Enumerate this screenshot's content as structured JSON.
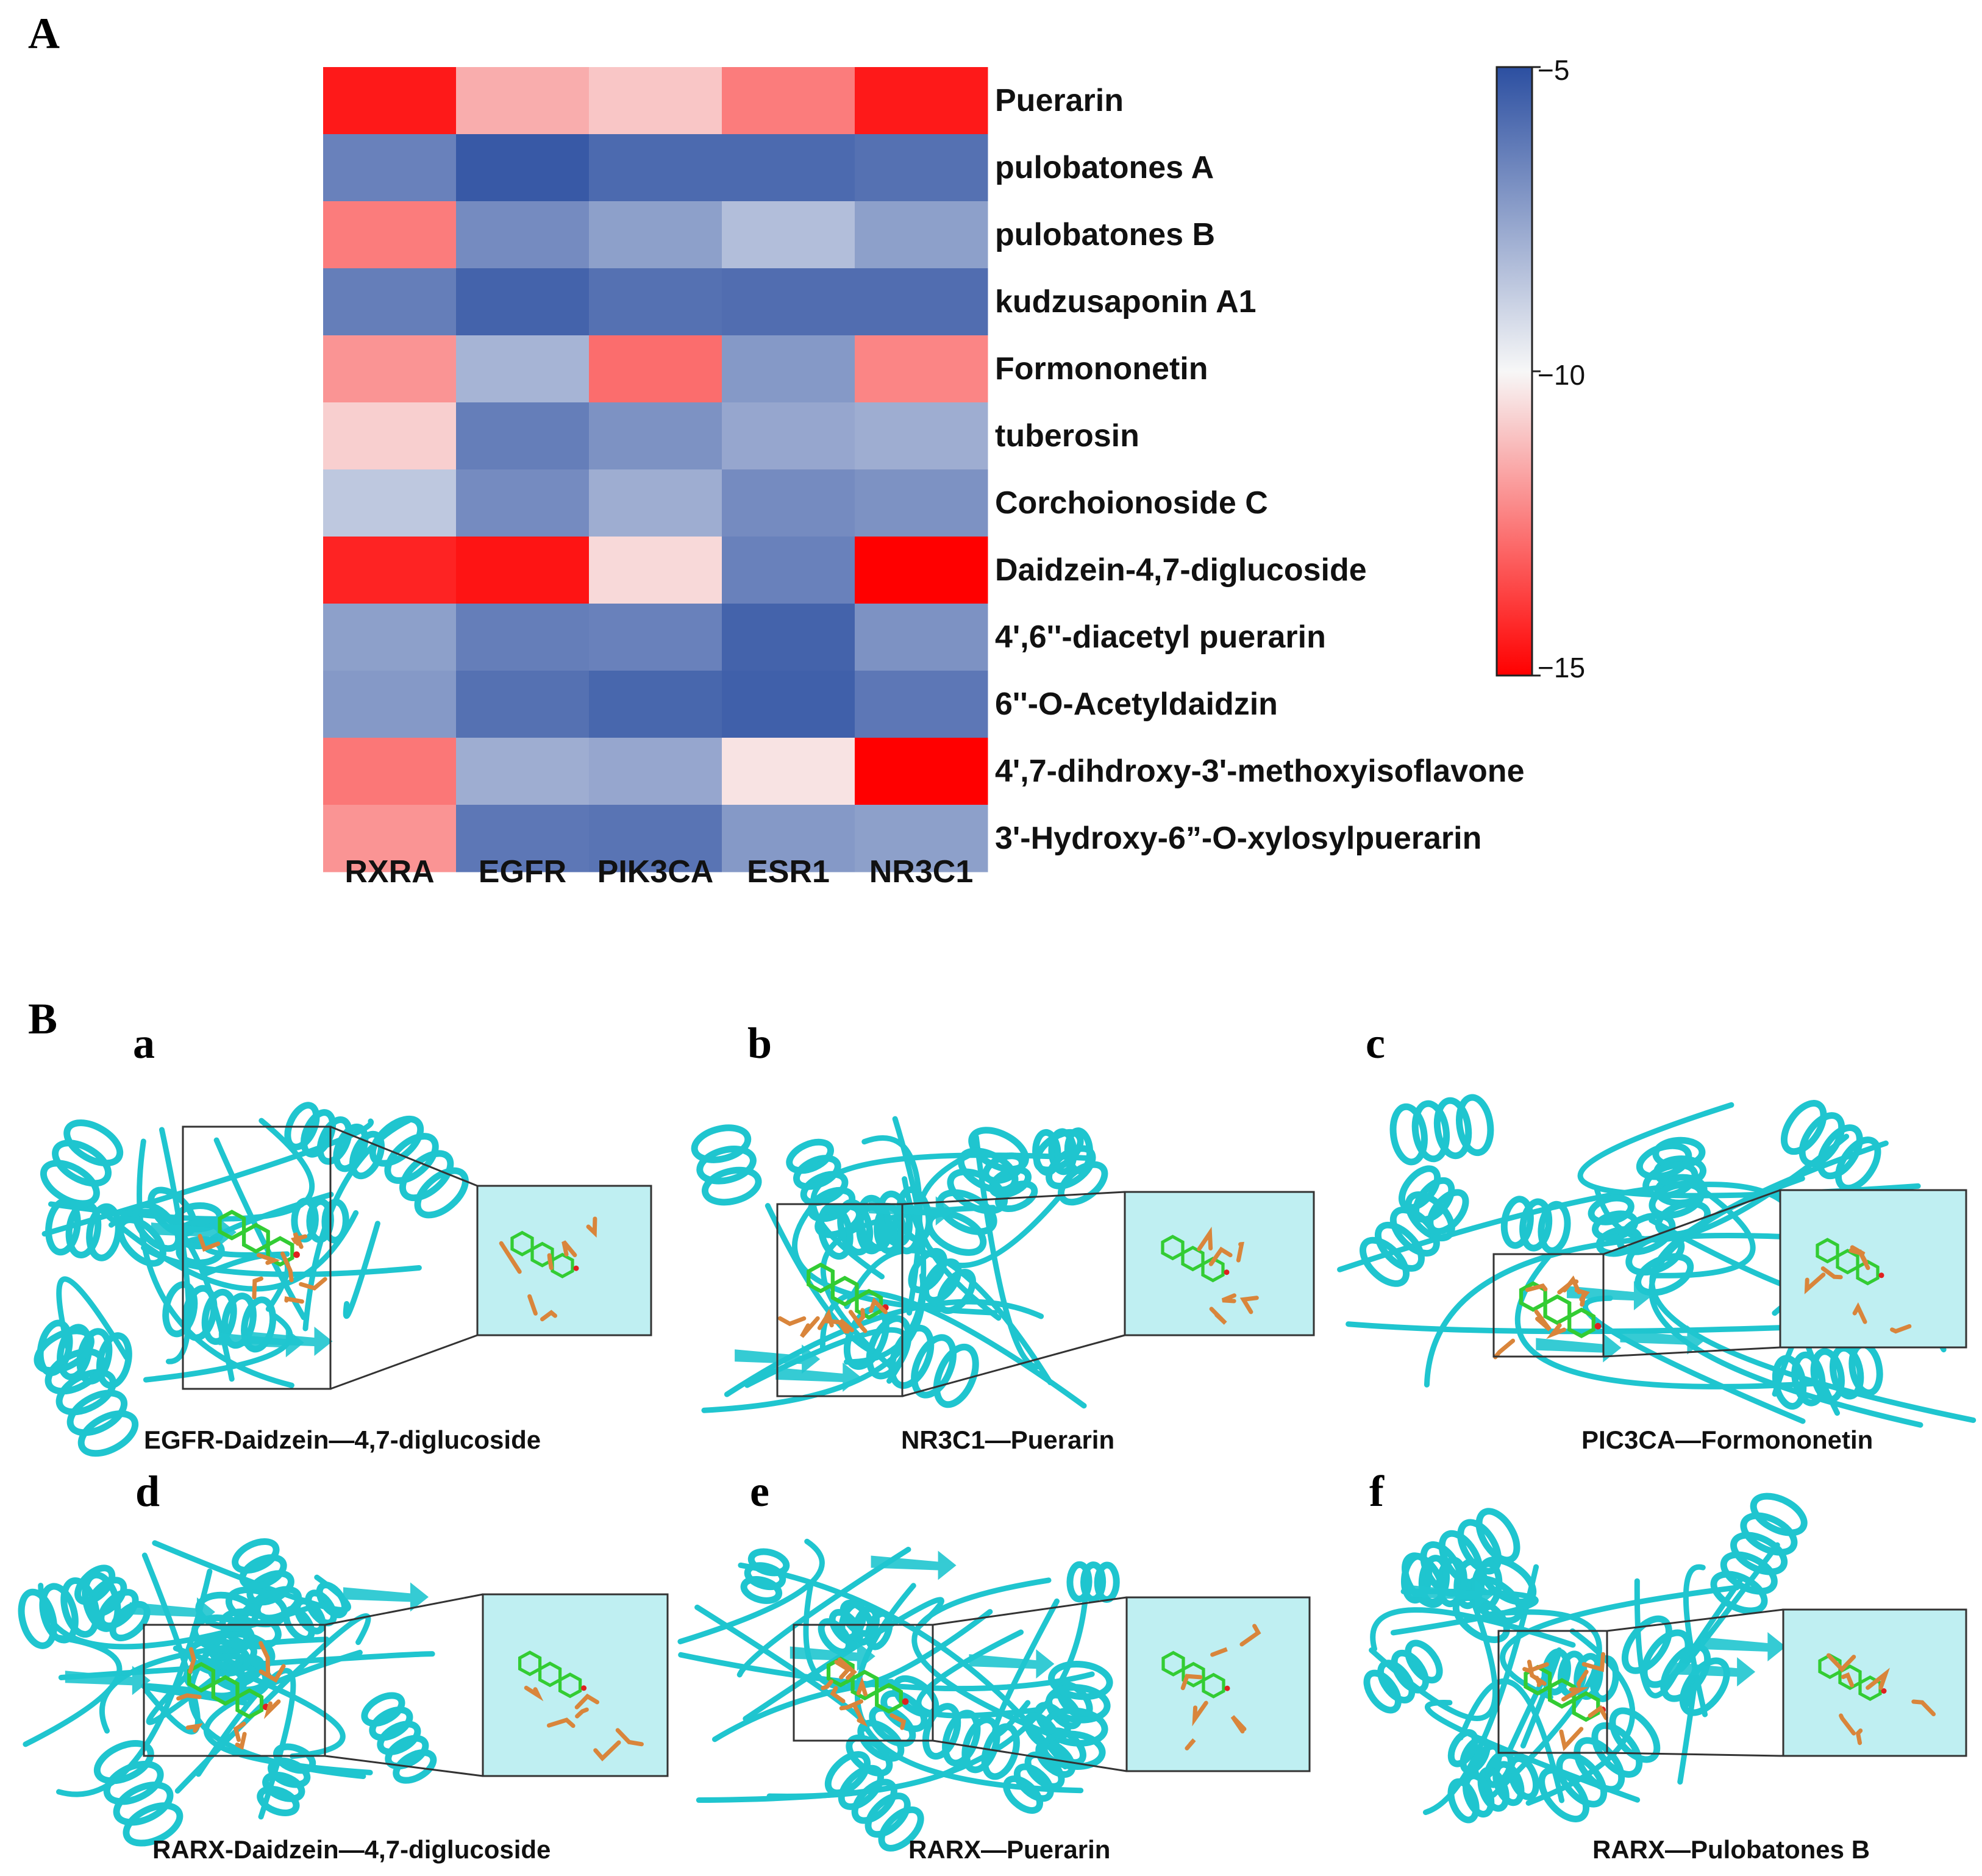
{
  "figure": {
    "panel_a_label": "A",
    "panel_b_label": "B"
  },
  "chart_data": {
    "type": "heatmap",
    "rows": [
      "Puerarin",
      "pulobatones A",
      "pulobatones B",
      "kudzusaponin A1",
      "Formononetin",
      "tuberosin",
      "Corchoionoside C",
      "Daidzein-4,7-diglucoside",
      "4',6''-diacetyl puerarin",
      "6''-O-Acetyldaidzin",
      "4',7-dihdroxy-3'-methoxyisoflavone",
      "3'-Hydroxy-6”-O-xylosylpuerarin"
    ],
    "columns": [
      "RXRA",
      "EGFR",
      "PIK3CA",
      "ESR1",
      "NR3C1"
    ],
    "values": [
      [
        -14.5,
        -11.5,
        -11.0,
        -12.5,
        -14.5
      ],
      [
        -6.5,
        -5.3,
        -5.8,
        -5.8,
        -6.0
      ],
      [
        -12.5,
        -6.8,
        -7.4,
        -8.3,
        -7.4
      ],
      [
        -6.4,
        -5.6,
        -6.0,
        -5.9,
        -5.9
      ],
      [
        -12.0,
        -8.0,
        -12.8,
        -7.2,
        -12.3
      ],
      [
        -10.8,
        -6.4,
        -7.0,
        -7.6,
        -7.8
      ],
      [
        -8.6,
        -6.8,
        -7.8,
        -6.8,
        -7.0
      ],
      [
        -14.3,
        -14.6,
        -10.6,
        -6.5,
        -15.0
      ],
      [
        -7.4,
        -6.4,
        -6.5,
        -5.6,
        -7.0
      ],
      [
        -7.2,
        -6.0,
        -5.7,
        -5.5,
        -6.2
      ],
      [
        -12.6,
        -7.8,
        -7.6,
        -10.4,
        -15.0
      ],
      [
        -12.0,
        -6.2,
        -6.1,
        -7.2,
        -7.4
      ]
    ],
    "colorbar": {
      "min": -15,
      "max": -5,
      "ticks": [
        "−5",
        "−10",
        "−15"
      ],
      "tick_values": [
        -5,
        -10,
        -15
      ]
    },
    "colors": {
      "high": "#2c4fa1",
      "mid": "#f7f7f7",
      "low": "#ff0000"
    }
  },
  "docking": [
    {
      "letter": "a",
      "caption": "EGFR-Daidzein—4,7-diglucoside"
    },
    {
      "letter": "b",
      "caption": "NR3C1—Puerarin"
    },
    {
      "letter": "c",
      "caption": "PIC3CA—Formononetin"
    },
    {
      "letter": "d",
      "caption": "RARX-Daidzein—4,7-diglucoside"
    },
    {
      "letter": "e",
      "caption": "RARX—Puerarin"
    },
    {
      "letter": "f",
      "caption": "RARX—Pulobatones B"
    }
  ],
  "colors": {
    "protein": "#1fc5cf",
    "ligand": "#33cc33",
    "residue": "#d9853b",
    "inset_bg": "#bfeff2"
  }
}
